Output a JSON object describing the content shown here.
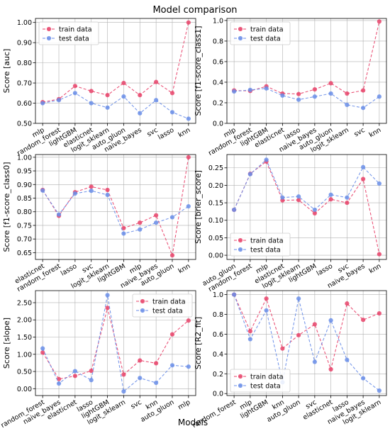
{
  "figure": {
    "title": "Model comparison",
    "xlabel": "Models"
  },
  "colors": {
    "train": "#e8436a",
    "test": "#6a8ee8"
  },
  "chart_data": [
    {
      "type": "line",
      "ylabel": "Score [auc]",
      "categories": [
        "mlp",
        "random_forest",
        "lightGBM",
        "elasticnet",
        "logit_sklearn",
        "auto_gluon",
        "naive_bayes",
        "svc",
        "lasso",
        "knn"
      ],
      "series": [
        {
          "name": "train data",
          "values": [
            0.605,
            0.62,
            0.685,
            0.66,
            0.64,
            0.7,
            0.64,
            0.705,
            0.65,
            1.0
          ]
        },
        {
          "name": "test data",
          "values": [
            0.6,
            0.615,
            0.65,
            0.6,
            0.578,
            0.633,
            0.55,
            0.615,
            0.555,
            0.523
          ]
        }
      ],
      "ylim": [
        0.5,
        1.02
      ],
      "yticks": [
        0.5,
        0.6,
        0.7,
        0.8,
        0.9,
        1.0
      ],
      "ytick_labels": [
        "0.50",
        "0.60",
        "0.70",
        "0.80",
        "0.90",
        "1.00"
      ],
      "legend": "top-left",
      "grid": true
    },
    {
      "type": "line",
      "ylabel": "Score [f1-score_class1]",
      "categories": [
        "mlp",
        "random_forest",
        "lightGBM",
        "elasticnet",
        "lasso",
        "naive_bayes",
        "auto_gluon",
        "logit_sklearn",
        "svc",
        "knn"
      ],
      "series": [
        {
          "name": "train data",
          "values": [
            0.32,
            0.315,
            0.36,
            0.29,
            0.285,
            0.33,
            0.39,
            0.29,
            0.32,
            0.99
          ]
        },
        {
          "name": "test data",
          "values": [
            0.31,
            0.325,
            0.34,
            0.27,
            0.23,
            0.26,
            0.29,
            0.18,
            0.15,
            0.26
          ]
        }
      ],
      "ylim": [
        0.0,
        1.02
      ],
      "yticks": [
        0.0,
        0.2,
        0.4,
        0.6,
        0.8,
        1.0
      ],
      "ytick_labels": [
        "0.0",
        "0.2",
        "0.4",
        "0.6",
        "0.8",
        "1.0"
      ],
      "legend": "top-left",
      "grid": true
    },
    {
      "type": "line",
      "ylabel": "Score [f1-score_class0]",
      "categories": [
        "elasticnet",
        "random_forest",
        "lasso",
        "svc",
        "logit_sklearn",
        "lightGBM",
        "mlp",
        "naive_bayes",
        "auto_gluon",
        "knn"
      ],
      "series": [
        {
          "name": "train data",
          "values": [
            0.88,
            0.785,
            0.872,
            0.892,
            0.88,
            0.74,
            0.76,
            0.787,
            0.64,
            1.0
          ]
        },
        {
          "name": "test data",
          "values": [
            0.878,
            0.79,
            0.867,
            0.877,
            0.862,
            0.72,
            0.735,
            0.76,
            0.78,
            0.82
          ]
        }
      ],
      "ylim": [
        0.625,
        1.01
      ],
      "yticks": [
        0.65,
        0.7,
        0.75,
        0.8,
        0.85,
        0.9,
        0.95,
        1.0
      ],
      "ytick_labels": [
        "0.65",
        "0.70",
        "0.75",
        "0.80",
        "0.85",
        "0.90",
        "0.95",
        "1.00"
      ],
      "legend": "",
      "grid": true
    },
    {
      "type": "line",
      "ylabel": "Score [brier_score]",
      "categories": [
        "auto_gluon",
        "random_forest",
        "mlp",
        "elasticnet",
        "logit_sklearn",
        "lightGBM",
        "lasso",
        "svc",
        "naive_bayes",
        "knn"
      ],
      "series": [
        {
          "name": "train data",
          "values": [
            0.13,
            0.233,
            0.268,
            0.157,
            0.158,
            0.12,
            0.16,
            0.15,
            0.218,
            0.003
          ]
        },
        {
          "name": "test data",
          "values": [
            0.13,
            0.232,
            0.273,
            0.165,
            0.168,
            0.13,
            0.173,
            0.165,
            0.252,
            0.205
          ]
        }
      ],
      "ylim": [
        -0.012,
        0.288
      ],
      "yticks": [
        0.0,
        0.05,
        0.1,
        0.15,
        0.2,
        0.25
      ],
      "ytick_labels": [
        "0.00",
        "0.05",
        "0.10",
        "0.15",
        "0.20",
        "0.25"
      ],
      "legend": "bottom-left",
      "grid": true
    },
    {
      "type": "line",
      "ylabel": "Score [slope]",
      "categories": [
        "random_forest",
        "naive_bayes",
        "elasticnet",
        "lasso",
        "lightGBM",
        "logit_sklearn",
        "svc",
        "knn",
        "auto_gluon",
        "mlp"
      ],
      "series": [
        {
          "name": "train data",
          "values": [
            1.05,
            0.28,
            0.37,
            0.52,
            2.35,
            0.41,
            0.82,
            0.74,
            1.58,
            1.98
          ]
        },
        {
          "name": "test data",
          "values": [
            1.17,
            0.15,
            0.51,
            0.25,
            2.72,
            -0.08,
            0.31,
            0.17,
            0.68,
            0.64
          ]
        }
      ],
      "ylim": [
        -0.2,
        2.85
      ],
      "yticks": [
        0.0,
        0.5,
        1.0,
        1.5,
        2.0,
        2.5
      ],
      "ytick_labels": [
        "0.00",
        "0.50",
        "1.00",
        "1.50",
        "2.00",
        "2.50"
      ],
      "legend": "top-right",
      "grid": true
    },
    {
      "type": "line",
      "ylabel": "Score [R2_fit]",
      "categories": [
        "random_forest",
        "mlp",
        "lightGBM",
        "knn",
        "auto_gluon",
        "svc",
        "elasticnet",
        "lasso",
        "naive_bayes",
        "logit_sklearn"
      ],
      "series": [
        {
          "name": "train data",
          "values": [
            1.0,
            0.63,
            0.96,
            0.455,
            0.59,
            0.7,
            0.245,
            0.91,
            0.745,
            0.81
          ]
        },
        {
          "name": "test data",
          "values": [
            1.0,
            0.55,
            0.84,
            0.115,
            0.96,
            0.32,
            0.74,
            0.34,
            0.155,
            0.03
          ]
        }
      ],
      "ylim": [
        -0.02,
        1.04
      ],
      "yticks": [
        0.0,
        0.2,
        0.4,
        0.6,
        0.8,
        1.0
      ],
      "ytick_labels": [
        "0.0",
        "0.2",
        "0.4",
        "0.6",
        "0.8",
        "1.0"
      ],
      "legend": "bottom-left",
      "grid": true
    }
  ]
}
